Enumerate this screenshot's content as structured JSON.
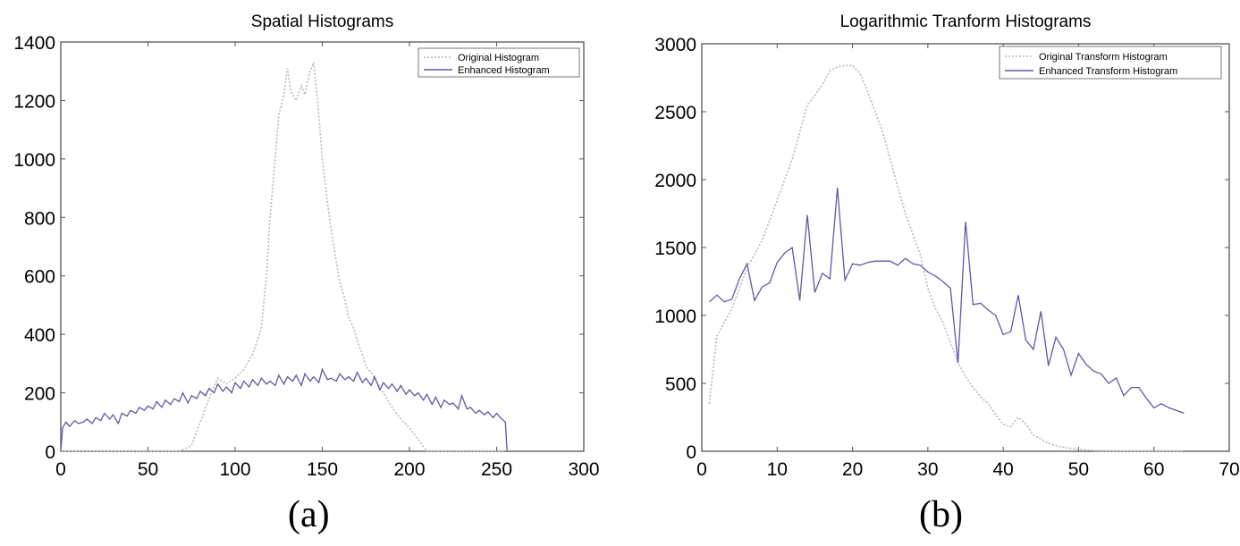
{
  "colors": {
    "original": "#b8b8b8",
    "enhanced": "#5a5aa8",
    "axis": "#555555"
  },
  "chart_data": [
    {
      "type": "line",
      "title": "Spatial Histograms",
      "caption": "(a)",
      "xlabel": "",
      "ylabel": "",
      "xlim": [
        0,
        300
      ],
      "ylim": [
        0,
        1400
      ],
      "xticks": [
        0,
        50,
        100,
        150,
        200,
        250,
        300
      ],
      "yticks": [
        0,
        200,
        400,
        600,
        800,
        1000,
        1200,
        1400
      ],
      "grid": false,
      "legend_position": "top-right",
      "series": [
        {
          "name": "Original Histogram",
          "style": "dotted",
          "x": [
            0,
            68,
            75,
            80,
            85,
            90,
            95,
            100,
            105,
            110,
            115,
            118,
            120,
            123,
            125,
            128,
            130,
            132,
            135,
            138,
            140,
            143,
            145,
            148,
            150,
            153,
            155,
            158,
            160,
            163,
            165,
            168,
            170,
            173,
            175,
            178,
            180,
            185,
            190,
            195,
            200,
            205,
            210,
            255
          ],
          "y": [
            0,
            0,
            20,
            100,
            180,
            250,
            230,
            250,
            280,
            330,
            420,
            600,
            800,
            1000,
            1150,
            1220,
            1310,
            1230,
            1200,
            1250,
            1220,
            1300,
            1330,
            1150,
            1000,
            850,
            760,
            650,
            580,
            520,
            460,
            420,
            380,
            330,
            290,
            270,
            250,
            200,
            150,
            110,
            80,
            40,
            0,
            0
          ]
        },
        {
          "name": "Enhanced Histogram",
          "style": "solid",
          "x": [
            0,
            1,
            3,
            5,
            8,
            10,
            13,
            15,
            18,
            20,
            23,
            25,
            28,
            30,
            33,
            35,
            38,
            40,
            43,
            45,
            48,
            50,
            53,
            55,
            58,
            60,
            63,
            65,
            68,
            70,
            73,
            75,
            78,
            80,
            83,
            85,
            88,
            90,
            93,
            95,
            98,
            100,
            103,
            105,
            108,
            110,
            113,
            115,
            118,
            120,
            123,
            125,
            128,
            130,
            133,
            135,
            138,
            140,
            143,
            145,
            148,
            150,
            153,
            155,
            158,
            160,
            163,
            165,
            168,
            170,
            173,
            175,
            178,
            180,
            183,
            185,
            188,
            190,
            193,
            195,
            198,
            200,
            203,
            205,
            208,
            210,
            213,
            215,
            218,
            220,
            223,
            225,
            228,
            230,
            233,
            235,
            238,
            240,
            243,
            245,
            248,
            250,
            253,
            255,
            256
          ],
          "y": [
            0,
            80,
            100,
            85,
            105,
            95,
            100,
            110,
            95,
            115,
            105,
            130,
            110,
            125,
            95,
            130,
            120,
            140,
            130,
            150,
            140,
            155,
            145,
            170,
            150,
            175,
            160,
            180,
            170,
            200,
            165,
            190,
            180,
            205,
            190,
            215,
            200,
            230,
            205,
            220,
            200,
            235,
            215,
            240,
            220,
            245,
            225,
            250,
            230,
            240,
            225,
            260,
            230,
            255,
            240,
            260,
            225,
            265,
            240,
            255,
            235,
            280,
            245,
            250,
            240,
            265,
            245,
            255,
            240,
            270,
            235,
            250,
            225,
            255,
            210,
            235,
            215,
            230,
            205,
            225,
            195,
            210,
            190,
            200,
            175,
            195,
            160,
            185,
            150,
            175,
            160,
            165,
            145,
            190,
            145,
            150,
            130,
            140,
            125,
            135,
            115,
            130,
            110,
            100,
            0
          ]
        }
      ]
    },
    {
      "type": "line",
      "title": "Logarithmic Tranform Histograms",
      "caption": "(b)",
      "xlabel": "",
      "ylabel": "",
      "xlim": [
        0,
        70
      ],
      "ylim": [
        0,
        3000
      ],
      "xticks": [
        0,
        10,
        20,
        30,
        40,
        50,
        60,
        70
      ],
      "yticks": [
        0,
        500,
        1000,
        1500,
        2000,
        2500,
        3000
      ],
      "grid": false,
      "legend_position": "top-right",
      "series": [
        {
          "name": "Original Transform Histogram",
          "style": "dotted",
          "x": [
            1,
            2,
            3,
            4,
            5,
            6,
            7,
            8,
            9,
            10,
            11,
            12,
            13,
            14,
            15,
            16,
            17,
            18,
            19,
            20,
            21,
            22,
            23,
            24,
            25,
            26,
            27,
            28,
            29,
            30,
            31,
            32,
            33,
            34,
            35,
            36,
            37,
            38,
            39,
            40,
            41,
            42,
            43,
            44,
            45,
            46,
            47,
            48,
            49,
            50,
            51,
            52,
            53,
            54,
            55,
            56,
            57,
            58,
            59,
            60,
            61,
            62,
            63,
            64
          ],
          "y": [
            350,
            850,
            950,
            1050,
            1200,
            1350,
            1450,
            1550,
            1700,
            1850,
            2000,
            2150,
            2350,
            2550,
            2620,
            2700,
            2800,
            2830,
            2840,
            2840,
            2780,
            2650,
            2500,
            2350,
            2150,
            1950,
            1750,
            1600,
            1450,
            1200,
            1050,
            950,
            800,
            650,
            550,
            470,
            400,
            350,
            270,
            200,
            180,
            250,
            200,
            120,
            90,
            60,
            40,
            30,
            20,
            15,
            10,
            5,
            3,
            2,
            1,
            0,
            0,
            0,
            0,
            0,
            0,
            0,
            0,
            0
          ]
        },
        {
          "name": "Enhanced Transform Histogram",
          "style": "solid",
          "x": [
            1,
            2,
            3,
            4,
            5,
            6,
            7,
            8,
            9,
            10,
            11,
            12,
            13,
            14,
            15,
            16,
            17,
            18,
            19,
            20,
            21,
            22,
            23,
            24,
            25,
            26,
            27,
            28,
            29,
            30,
            31,
            32,
            33,
            34,
            35,
            36,
            37,
            38,
            39,
            40,
            41,
            42,
            43,
            44,
            45,
            46,
            47,
            48,
            49,
            50,
            51,
            52,
            53,
            54,
            55,
            56,
            57,
            58,
            59,
            60,
            61,
            62,
            63,
            64
          ],
          "y": [
            1100,
            1150,
            1100,
            1120,
            1270,
            1380,
            1110,
            1210,
            1240,
            1390,
            1460,
            1500,
            1110,
            1740,
            1170,
            1310,
            1270,
            1940,
            1260,
            1380,
            1370,
            1390,
            1400,
            1400,
            1400,
            1370,
            1420,
            1380,
            1370,
            1320,
            1290,
            1250,
            1200,
            650,
            1690,
            1080,
            1090,
            1040,
            1000,
            860,
            880,
            1150,
            820,
            750,
            1030,
            630,
            840,
            750,
            560,
            720,
            640,
            590,
            570,
            500,
            540,
            410,
            470,
            470,
            390,
            320,
            350,
            320,
            300,
            280
          ]
        }
      ]
    }
  ]
}
